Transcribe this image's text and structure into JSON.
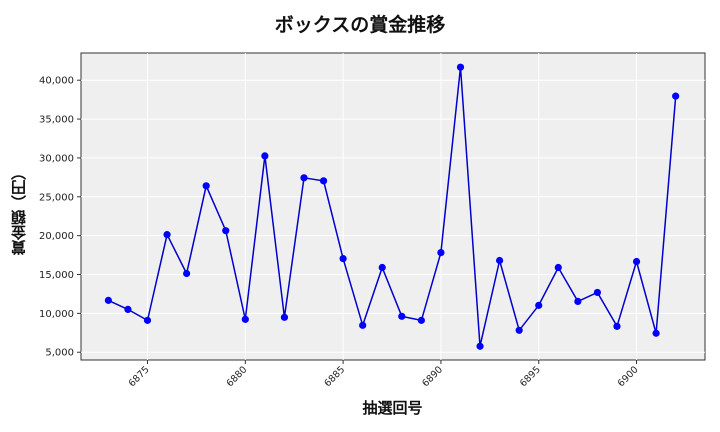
{
  "chart_data": {
    "type": "line",
    "title": "ボックスの賞金推移",
    "xlabel": "抽選回号",
    "ylabel": "賞金額（円）",
    "x": [
      6873,
      6874,
      6875,
      6876,
      6877,
      6878,
      6879,
      6880,
      6881,
      6882,
      6883,
      6884,
      6885,
      6886,
      6887,
      6888,
      6889,
      6890,
      6891,
      6892,
      6893,
      6894,
      6895,
      6896,
      6897,
      6898,
      6899,
      6900,
      6901,
      6902
    ],
    "series": [
      {
        "name": "ボックス",
        "color": "#0000cc",
        "marker_color": "#0000ff",
        "values": [
          11670,
          10510,
          9100,
          20130,
          15130,
          26410,
          20640,
          9230,
          30260,
          9490,
          27440,
          27050,
          17050,
          8460,
          15900,
          9620,
          9100,
          17820,
          41670,
          5770,
          16800,
          7820,
          11030,
          15900,
          11540,
          12690,
          8330,
          16670,
          7440,
          37950
        ]
      }
    ],
    "xticks": [
      6875,
      6880,
      6885,
      6890,
      6895,
      6900
    ],
    "xtick_labels": [
      "6875",
      "6880",
      "6885",
      "6890",
      "6895",
      "6900"
    ],
    "yticks": [
      5000,
      10000,
      15000,
      20000,
      25000,
      30000,
      35000,
      40000
    ],
    "ytick_labels": [
      "5,000",
      "10,000",
      "15,000",
      "20,000",
      "25,000",
      "30,000",
      "35,000",
      "40,000"
    ],
    "xlim": [
      6871.6,
      6903.5
    ],
    "ylim": [
      4000,
      43500
    ],
    "grid": true,
    "legend": null,
    "background": "#efefef"
  }
}
